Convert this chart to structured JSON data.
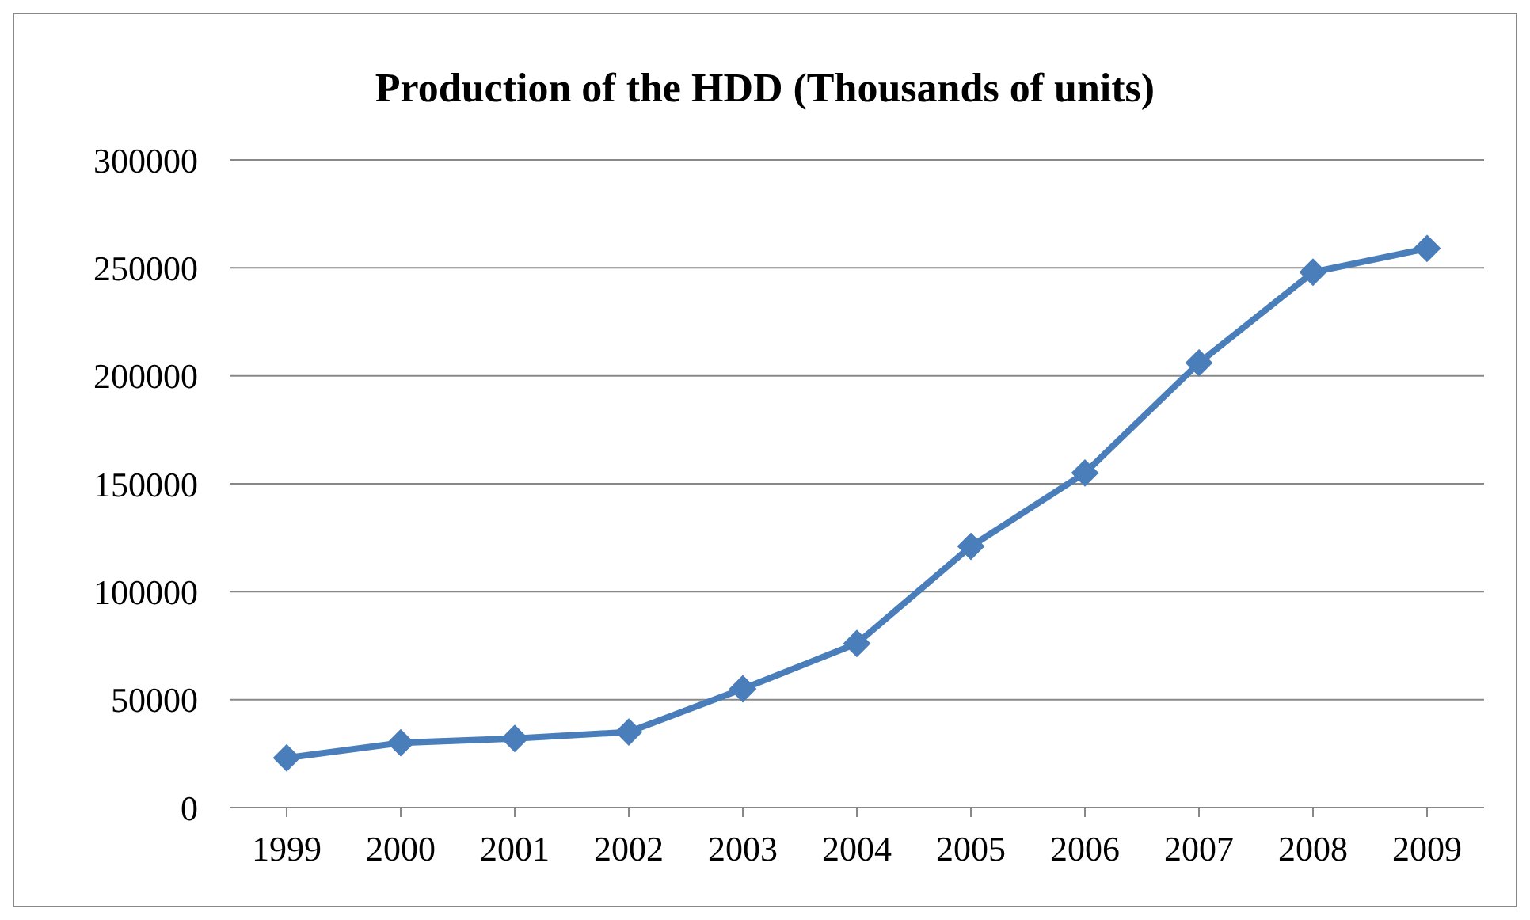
{
  "chart_data": {
    "type": "line",
    "title": "Production of the HDD (Thousands of units)",
    "categories": [
      "1999",
      "2000",
      "2001",
      "2002",
      "2003",
      "2004",
      "2005",
      "2006",
      "2007",
      "2008",
      "2009"
    ],
    "series": [
      {
        "color": "#4a7ebb",
        "values": [
          23000,
          30000,
          32000,
          35000,
          55000,
          76000,
          121000,
          155000,
          206000,
          248000,
          259000
        ]
      }
    ],
    "ylim": [
      0,
      300000
    ],
    "yticks": [
      0,
      50000,
      100000,
      150000,
      200000,
      250000,
      300000
    ],
    "grid": "y",
    "legend": false,
    "marker": "diamond",
    "line_style": "solid"
  }
}
